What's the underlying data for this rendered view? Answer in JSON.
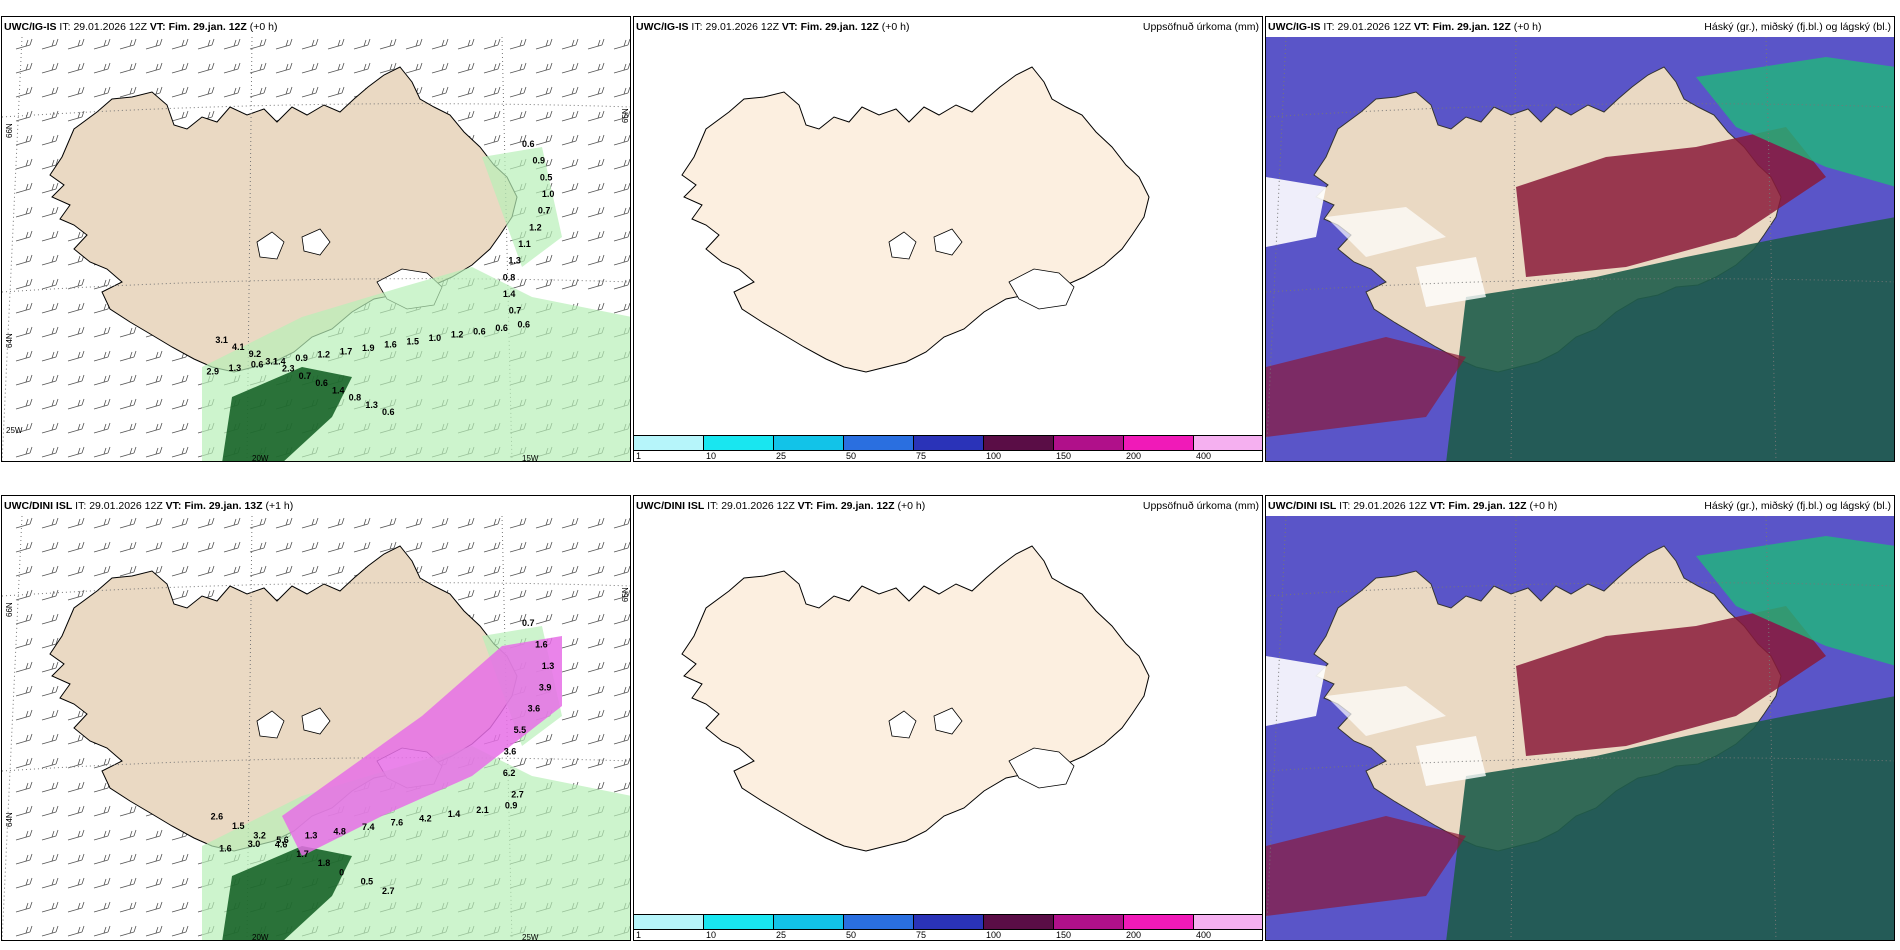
{
  "panels": [
    {
      "model": "UWC/IG-IS",
      "it_label": "IT:",
      "it_value": "29.01.2026 12Z",
      "vt_label": "VT:",
      "vt_value": "Fim. 29.jan. 12Z",
      "lead": "(+0 h)",
      "right_title": "",
      "lat_labels": [
        "66N",
        "64N",
        "65N"
      ],
      "lon_labels": [
        "20W",
        "15W",
        "25W"
      ],
      "precip_labels": [
        "0.6",
        "0.9",
        "0.5",
        "1.0",
        "0.7",
        "1.2",
        "1.1",
        "1.3",
        "0.8",
        "1.4",
        "0.7",
        "0.6",
        "0.6",
        "0.6",
        "1.2",
        "1.0",
        "1.5",
        "1.6",
        "1.9",
        "1.7",
        "1.2",
        "0.9",
        "1.4",
        "0.6",
        "1.3",
        "2.9",
        "3.1",
        "4.1",
        "9.2",
        "3.1",
        "2.3",
        "0.7",
        "0.6",
        "1.4",
        "0.8",
        "1.3",
        "0.6"
      ]
    },
    {
      "model": "UWC/IG-IS",
      "it_label": "IT:",
      "it_value": "29.01.2026 12Z",
      "vt_label": "VT:",
      "vt_value": "Fim. 29.jan. 12Z",
      "lead": "(+0 h)",
      "right_title": "Uppsöfnuð úrkoma (mm)",
      "colorbar": {
        "ticks": [
          "1",
          "10",
          "25",
          "50",
          "75",
          "100",
          "150",
          "200",
          "400"
        ],
        "colors": [
          "#b6f5fa",
          "#19e6f0",
          "#12c3e8",
          "#2a6fe0",
          "#2a33b8",
          "#5a0d46",
          "#b0108a",
          "#f01ab8",
          "#f5b0f0"
        ]
      }
    },
    {
      "model": "UWC/IG-IS",
      "it_label": "IT:",
      "it_value": "29.01.2026 12Z",
      "vt_label": "VT:",
      "vt_value": "Fim. 29.jan. 12Z",
      "lead": "(+0 h)",
      "right_title": "Háský (gr.), miðský (fj.bl.) og lágský (bl.)"
    },
    {
      "model": "UWC/DINI ISL",
      "it_label": "IT:",
      "it_value": "29.01.2026 12Z",
      "vt_label": "VT:",
      "vt_value": "Fim. 29.jan. 13Z",
      "lead": "(+1 h)",
      "right_title": "",
      "lat_labels": [
        "66N",
        "64N",
        "65N"
      ],
      "lon_labels": [
        "20W",
        "25W"
      ],
      "precip_labels": [
        "0.7",
        "1.6",
        "1.3",
        "3.9",
        "3.6",
        "5.5",
        "3.6",
        "6.2",
        "2.7",
        "0.9",
        "2.1",
        "1.4",
        "4.2",
        "7.6",
        "7.4",
        "4.8",
        "1.3",
        "5.6",
        "3.0",
        "1.6",
        "2.6",
        "1.5",
        "3.2",
        "4.6",
        "1.7",
        "1.8",
        "0",
        "0.5",
        "2.7"
      ]
    },
    {
      "model": "UWC/DINI ISL",
      "it_label": "IT:",
      "it_value": "29.01.2026 12Z",
      "vt_label": "VT:",
      "vt_value": "Fim. 29.jan. 12Z",
      "lead": "(+0 h)",
      "right_title": "Uppsöfnuð úrkoma (mm)",
      "colorbar": {
        "ticks": [
          "1",
          "10",
          "25",
          "50",
          "75",
          "100",
          "150",
          "200",
          "400"
        ],
        "colors": [
          "#b6f5fa",
          "#19e6f0",
          "#12c3e8",
          "#2a6fe0",
          "#2a33b8",
          "#5a0d46",
          "#b0108a",
          "#f01ab8",
          "#f5b0f0"
        ]
      }
    },
    {
      "model": "UWC/DINI ISL",
      "it_label": "IT:",
      "it_value": "29.01.2026 12Z",
      "vt_label": "VT:",
      "vt_value": "Fim. 29.jan. 12Z",
      "lead": "(+0 h)",
      "right_title": "Háský (gr.), miðský (fj.bl.) og lágský (bl.)"
    }
  ],
  "colors": {
    "land_tan": "#ead9c3",
    "land_cream": "#fcefe0",
    "precip_light_green": "#b8f0b8",
    "precip_dark_green": "#0d5a1e",
    "precip_magenta": "#e66ee6",
    "cloud_high_green": "#1fb87a",
    "cloud_mid_purple": "#5a55c8",
    "cloud_low_maroon": "#8a1a3a",
    "cloud_deep_teal": "#1e5c4a"
  }
}
